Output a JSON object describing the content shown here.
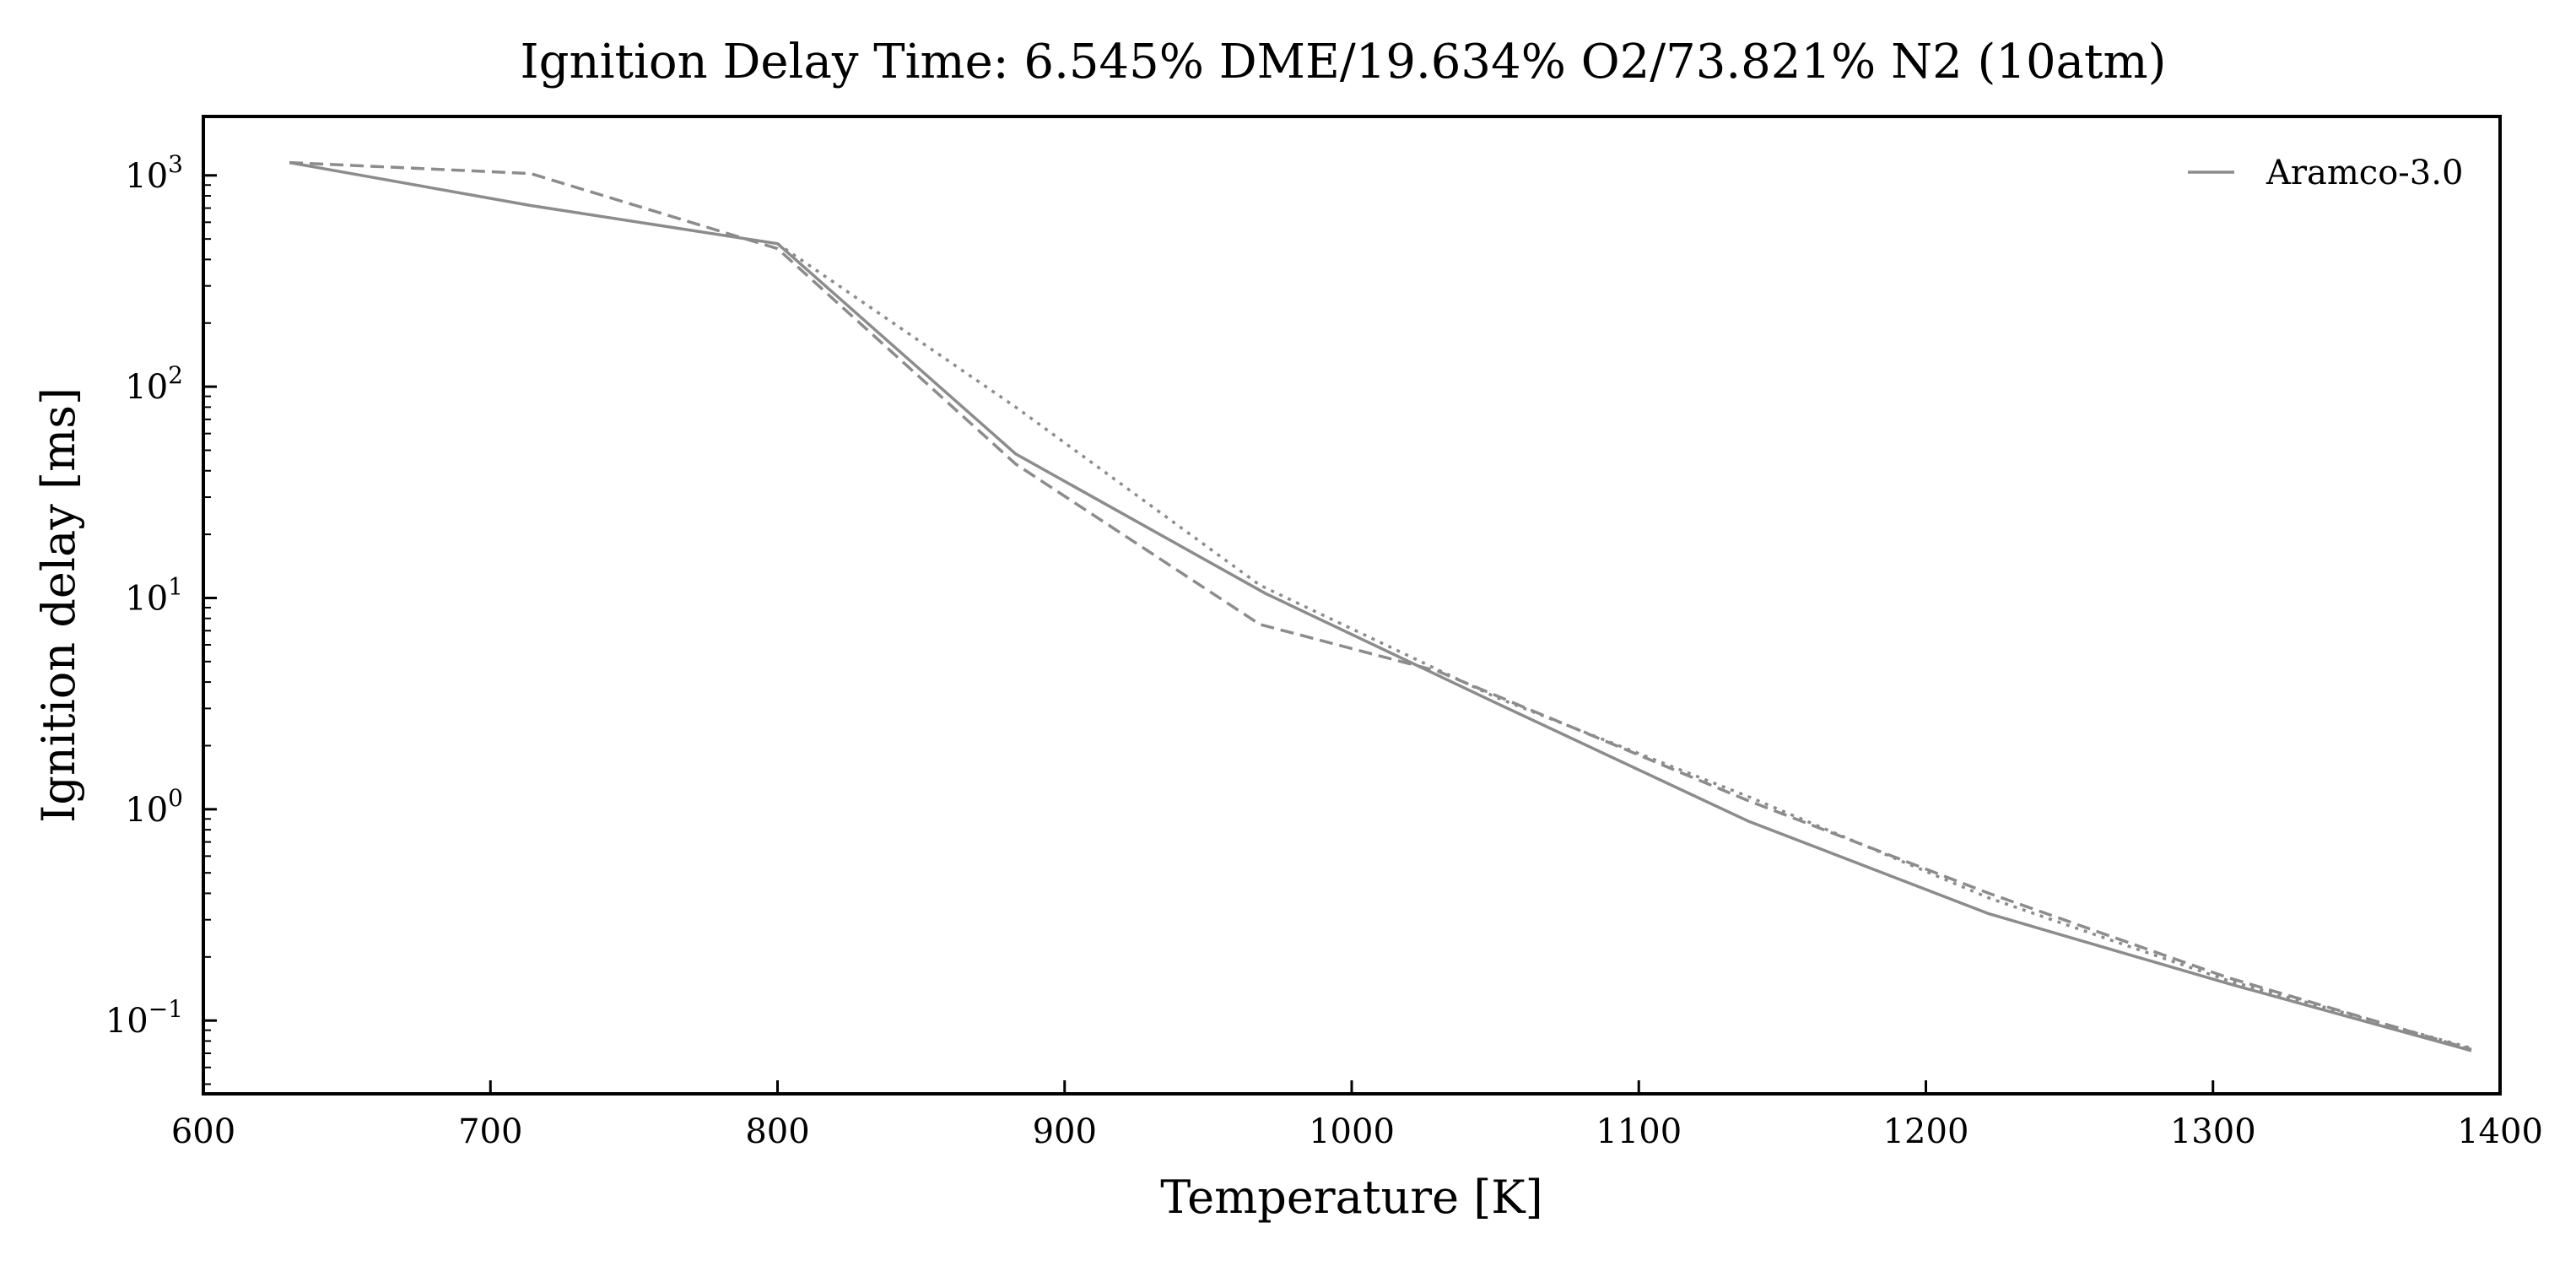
{
  "chart_data": {
    "type": "line",
    "title": "Ignition Delay Time: 6.545% DME/19.634% O2/73.821% N2 (10atm)",
    "xlabel": "Temperature [K]",
    "ylabel": "Ignition delay [ms]",
    "xlim": [
      600,
      1400
    ],
    "ylim": [
      0.045,
      1900
    ],
    "yscale": "log",
    "xticks": [
      600,
      700,
      800,
      900,
      1000,
      1100,
      1200,
      1300,
      1400
    ],
    "yticks_exponents": [
      -1,
      0,
      1,
      2,
      3
    ],
    "ytick_base": "10",
    "grid": false,
    "legend": {
      "position": "top-right",
      "entries": [
        "Aramco-3.0"
      ]
    },
    "line_color": "#8c8c8c",
    "series": [
      {
        "name": "Aramco-3.0",
        "style": "solid",
        "x": [
          630,
          714,
          800,
          883,
          970,
          1050,
          1138,
          1222,
          1305,
          1390
        ],
        "y": [
          1150,
          720,
          475,
          48,
          10.5,
          3.2,
          0.88,
          0.32,
          0.15,
          0.072
        ]
      },
      {
        "name": "",
        "style": "dashed",
        "x": [
          630,
          714,
          800,
          883,
          968,
          1030,
          1138,
          1222,
          1305,
          1390
        ],
        "y": [
          1150,
          1020,
          450,
          43,
          7.5,
          4.5,
          1.1,
          0.4,
          0.16,
          0.073
        ]
      },
      {
        "name": "",
        "style": "dotted",
        "x": [
          800,
          883,
          968,
          1050,
          1138,
          1222,
          1305,
          1390
        ],
        "y": [
          475,
          80,
          11.5,
          3.4,
          1.15,
          0.38,
          0.155,
          0.074
        ]
      }
    ]
  }
}
